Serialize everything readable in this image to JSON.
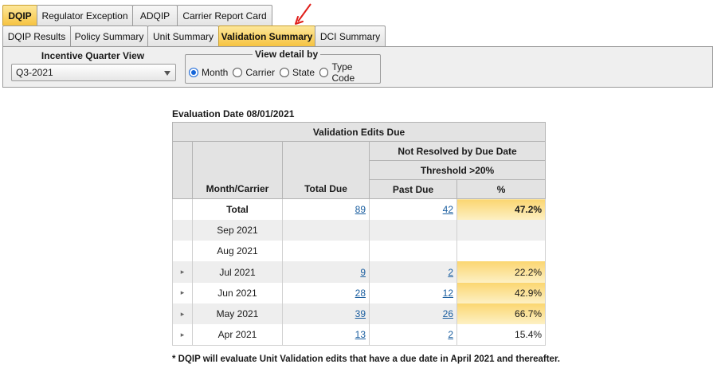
{
  "main_tabs": [
    "DQIP",
    "Regulator Exception",
    "ADQIP",
    "Carrier Report Card"
  ],
  "sub_tabs": [
    "DQIP Results",
    "Policy Summary",
    "Unit Summary",
    "Validation Summary",
    "DCI Summary"
  ],
  "filters": {
    "incentive_label": "Incentive Quarter View",
    "incentive_value": "Q3-2021",
    "view_detail_label": "View detail by",
    "view_options": [
      "Month",
      "Carrier",
      "State",
      "Type Code"
    ],
    "selected_view": "Month"
  },
  "evaluation_date": "Evaluation Date 08/01/2021",
  "table": {
    "title": "Validation Edits Due",
    "group_header": "Not Resolved by Due Date",
    "threshold_header": "Threshold >20%",
    "columns": {
      "month_carrier": "Month/Carrier",
      "total_due": "Total Due",
      "past_due": "Past Due",
      "percent": "%"
    },
    "rows": {
      "total": {
        "label": "Total",
        "total_due": "89",
        "past_due": "42",
        "percent": "47.2%"
      },
      "sep": {
        "label": "Sep 2021",
        "total_due": "",
        "past_due": "",
        "percent": ""
      },
      "aug": {
        "label": "Aug 2021",
        "total_due": "",
        "past_due": "",
        "percent": ""
      },
      "jul": {
        "label": "Jul 2021",
        "total_due": "9",
        "past_due": "2",
        "percent": "22.2%"
      },
      "jun": {
        "label": "Jun 2021",
        "total_due": "28",
        "past_due": "12",
        "percent": "42.9%"
      },
      "may": {
        "label": "May 2021",
        "total_due": "39",
        "past_due": "26",
        "percent": "66.7%"
      },
      "apr": {
        "label": "Apr 2021",
        "total_due": "13",
        "past_due": "2",
        "percent": "15.4%"
      }
    }
  },
  "footnote": "* DQIP will evaluate Unit Validation edits that have a due date in April 2021 and thereafter.",
  "colors": {
    "active_tab": "#f6c340",
    "highlight": "#fbd671",
    "link": "#1c5fa0",
    "annotation_arrow": "#e0201b"
  }
}
